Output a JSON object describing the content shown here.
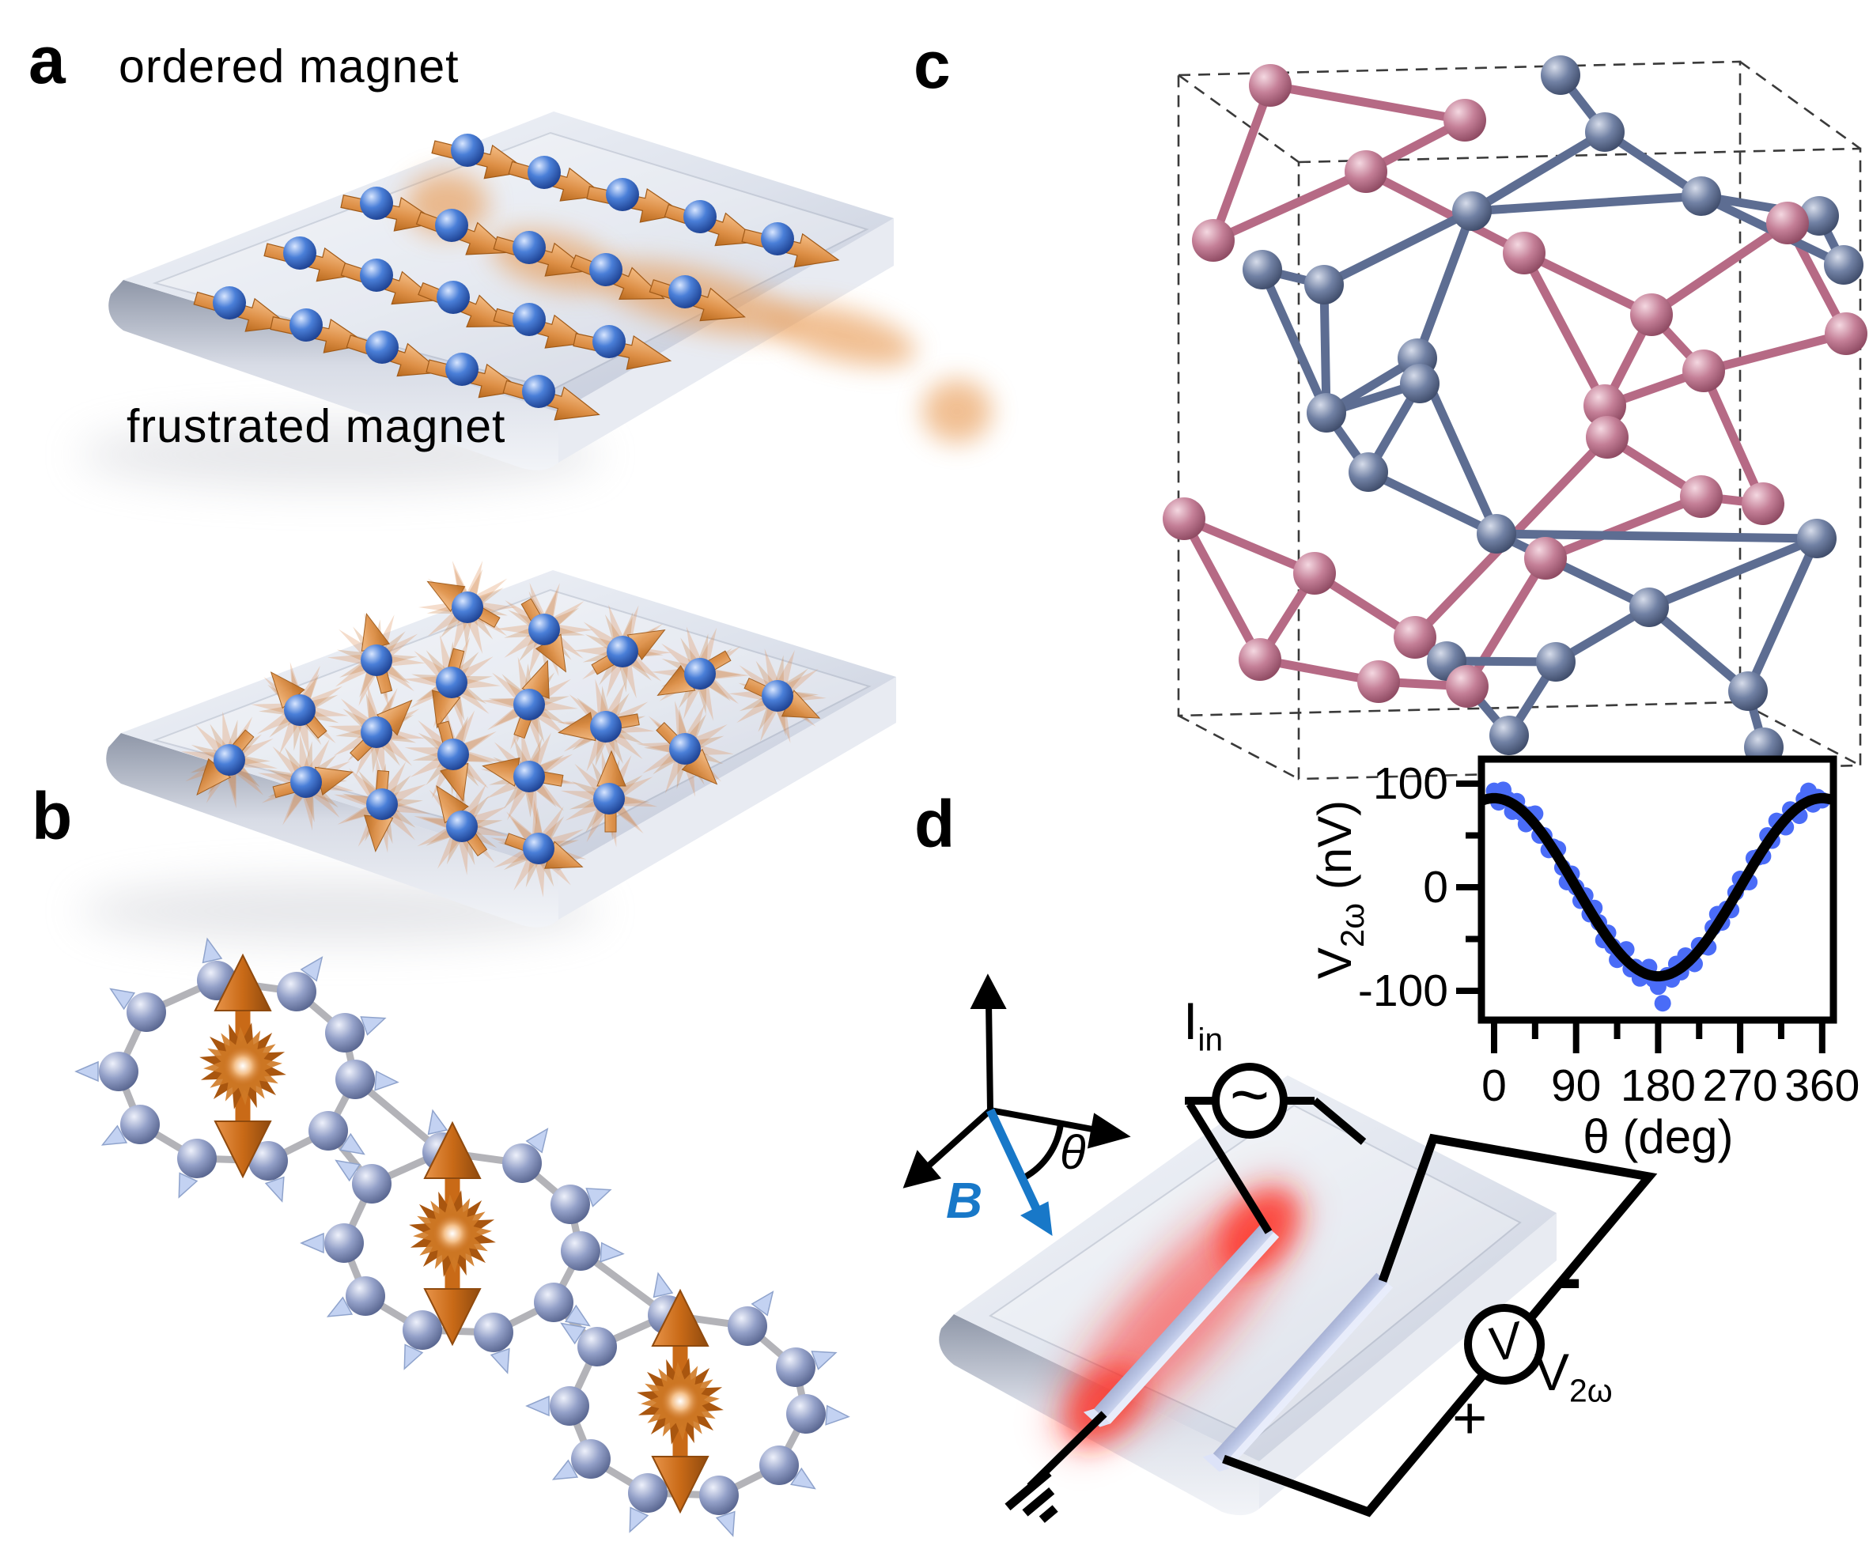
{
  "panels": {
    "a": {
      "label": "a",
      "title_top": "ordered magnet",
      "title_bottom": "frustrated magnet"
    },
    "b": {
      "label": "b"
    },
    "c": {
      "label": "c"
    },
    "d": {
      "label": "d",
      "field_label": "B",
      "angle_label": "θ",
      "current_label_base": "I",
      "current_label_sub": "in",
      "ac_symbol": "~",
      "voltmeter_symbol": "V",
      "minus_label": "-",
      "plus_label": "+",
      "voltage_label_base": "V",
      "voltage_label_sub": "2ω"
    }
  },
  "chart_data": {
    "type": "scatter",
    "title": "",
    "xlabel": "θ (deg)",
    "ylabel_base": "V",
    "ylabel_sub": "2ω",
    "ylabel_units": " (nV)",
    "xlim": [
      -14,
      372
    ],
    "ylim": [
      -130,
      122
    ],
    "xticks_major": [
      0,
      90,
      180,
      270,
      360
    ],
    "xticks_minor": [
      45,
      135,
      225,
      315
    ],
    "yticks_major": [
      100,
      0,
      -100
    ],
    "yticks_minor": [
      50,
      -50
    ],
    "grid": false,
    "legend": "none",
    "fit": {
      "type": "cosine",
      "amplitude_nV": 86,
      "period_deg": 360,
      "color": "#000000"
    },
    "series": [
      {
        "name": "V2w vs theta data",
        "color": "#4a6cf7",
        "points": [
          [
            0,
            93
          ],
          [
            5,
            82
          ],
          [
            10,
            94
          ],
          [
            15,
            85
          ],
          [
            20,
            73
          ],
          [
            25,
            83
          ],
          [
            30,
            72
          ],
          [
            35,
            61
          ],
          [
            40,
            70
          ],
          [
            45,
            71
          ],
          [
            50,
            50
          ],
          [
            55,
            50
          ],
          [
            60,
            36
          ],
          [
            65,
            39
          ],
          [
            70,
            37
          ],
          [
            75,
            19
          ],
          [
            80,
            5
          ],
          [
            85,
            13
          ],
          [
            90,
            0
          ],
          [
            95,
            -13
          ],
          [
            100,
            -8
          ],
          [
            105,
            -26
          ],
          [
            110,
            -20
          ],
          [
            115,
            -34
          ],
          [
            120,
            -51
          ],
          [
            125,
            -44
          ],
          [
            130,
            -57
          ],
          [
            135,
            -70
          ],
          [
            140,
            -62
          ],
          [
            145,
            -60
          ],
          [
            150,
            -79
          ],
          [
            155,
            -77
          ],
          [
            160,
            -88
          ],
          [
            165,
            -80
          ],
          [
            170,
            -77
          ],
          [
            175,
            -89
          ],
          [
            180,
            -96
          ],
          [
            185,
            -112
          ],
          [
            190,
            -85
          ],
          [
            195,
            -89
          ],
          [
            200,
            -74
          ],
          [
            205,
            -82
          ],
          [
            210,
            -66
          ],
          [
            215,
            -68
          ],
          [
            220,
            -74
          ],
          [
            225,
            -56
          ],
          [
            230,
            -57
          ],
          [
            235,
            -58
          ],
          [
            240,
            -39
          ],
          [
            245,
            -26
          ],
          [
            250,
            -34
          ],
          [
            255,
            -21
          ],
          [
            260,
            -22
          ],
          [
            265,
            -5
          ],
          [
            270,
            8
          ],
          [
            275,
            5
          ],
          [
            280,
            5
          ],
          [
            285,
            28
          ],
          [
            290,
            29
          ],
          [
            295,
            30
          ],
          [
            300,
            50
          ],
          [
            305,
            45
          ],
          [
            310,
            64
          ],
          [
            315,
            63
          ],
          [
            320,
            58
          ],
          [
            325,
            75
          ],
          [
            330,
            73
          ],
          [
            335,
            69
          ],
          [
            340,
            85
          ],
          [
            345,
            93
          ],
          [
            350,
            80
          ],
          [
            355,
            87
          ],
          [
            360,
            84
          ]
        ]
      }
    ]
  },
  "colors": {
    "data_point_blue": "#4a6cf7",
    "fit_line": "#000000",
    "b_field_blue": "#1878c8",
    "spin_orange": "#d97a26",
    "sphere_blue": "#4a7fd8",
    "ring_sphere_blue_gray": "#93a0c8",
    "lattice_pink": "#c47f97",
    "lattice_slate_blue": "#7181a4",
    "slab_gray": "#c9cfdd",
    "electrode_lavender": "#c9d2ee",
    "heater_glow_red": "#ff1e12"
  }
}
